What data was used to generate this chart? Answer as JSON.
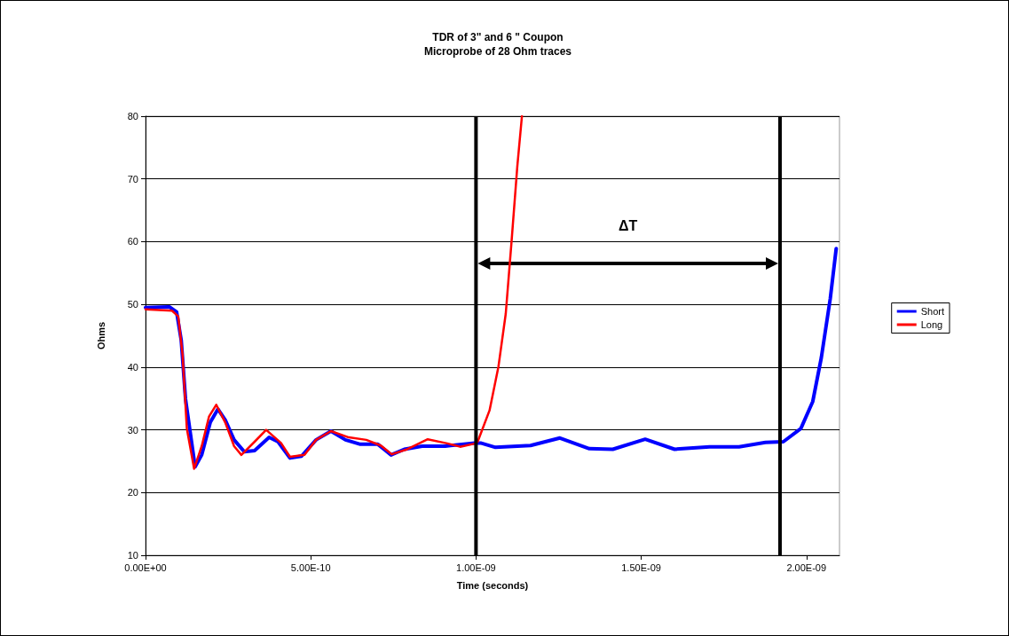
{
  "chart_data": {
    "type": "line",
    "title": "TDR of 3\" and 6 \" Coupon",
    "subtitle": "Microprobe of 28 Ohm traces",
    "xlabel": "Time (seconds)",
    "ylabel": "Ohms",
    "xlim": [
      0,
      2.1e-09
    ],
    "xticks": [
      {
        "value": 0,
        "label": "0.00E+00"
      },
      {
        "value": 5e-10,
        "label": "5.00E-10"
      },
      {
        "value": 1e-09,
        "label": "1.00E-09"
      },
      {
        "value": 1.5e-09,
        "label": "1.50E-09"
      },
      {
        "value": 2e-09,
        "label": "2.00E-09"
      }
    ],
    "ylim": [
      10,
      80
    ],
    "yticks": [
      10,
      20,
      30,
      40,
      50,
      60,
      70,
      80
    ],
    "grid": "y",
    "legend": "right",
    "marker": "none",
    "line_style": "solid",
    "ref_lines": [
      {
        "axis": "x",
        "value": 1e-09,
        "label": null,
        "color": "#000000"
      },
      {
        "axis": "x",
        "value": 1.92e-09,
        "label": null,
        "color": "#000000"
      }
    ],
    "annotations": [
      "ΔT"
    ],
    "series": [
      {
        "name": "Short",
        "color": "#0000ff",
        "x": [
          0,
          7.2e-11,
          9.4e-11,
          1.08e-10,
          1.21e-10,
          1.5e-10,
          1.7e-10,
          1.96e-10,
          2.19e-10,
          2.41e-10,
          2.68e-10,
          2.99e-10,
          3.3e-10,
          3.74e-10,
          4.01e-10,
          4.37e-10,
          4.72e-10,
          5.16e-10,
          5.61e-10,
          6.05e-10,
          6.5e-10,
          7.03e-10,
          7.43e-10,
          7.83e-10,
          8.37e-10,
          9.07e-10,
          9.96e-10,
          1.014e-09,
          1.059e-09,
          1.165e-09,
          1.254e-09,
          1.343e-09,
          1.414e-09,
          1.512e-09,
          1.601e-09,
          1.707e-09,
          1.796e-09,
          1.876e-09,
          1.93e-09,
          1.983e-09,
          2.019e-09,
          2.045e-09,
          2.072e-09,
          2.09e-09
        ],
        "values": [
          49.5,
          49.6,
          48.8,
          44.3,
          34.9,
          24.1,
          26,
          31.2,
          33.3,
          31.6,
          28.4,
          26.5,
          26.7,
          28.8,
          28.1,
          25.5,
          25.8,
          28.4,
          29.8,
          28.4,
          27.7,
          27.7,
          26,
          26.9,
          27.4,
          27.4,
          27.9,
          27.9,
          27.2,
          27.5,
          28.7,
          27,
          26.9,
          28.5,
          26.9,
          27.3,
          27.3,
          28,
          28.1,
          30.2,
          34.5,
          41.5,
          50.9,
          58.9
        ]
      },
      {
        "name": "Long",
        "color": "#ff0000",
        "x": [
          0,
          8e-11,
          9.9e-11,
          1.12e-10,
          1.25e-10,
          1.47e-10,
          1.7e-10,
          1.92e-10,
          2.14e-10,
          2.41e-10,
          2.68e-10,
          2.9e-10,
          3.3e-10,
          3.65e-10,
          4.1e-10,
          4.37e-10,
          4.81e-10,
          5.16e-10,
          5.61e-10,
          6.15e-10,
          6.68e-10,
          7.12e-10,
          7.45e-10,
          7.92e-10,
          8.54e-10,
          9.16e-10,
          9.52e-10,
          9.96e-10,
          1.005e-09,
          1.041e-09,
          1.068e-09,
          1.09e-09,
          1.108e-09,
          1.125e-09,
          1.139e-09
        ],
        "values": [
          49.2,
          49,
          48.1,
          42,
          30.2,
          23.8,
          27.4,
          32.1,
          34,
          31.2,
          27.4,
          26,
          28.1,
          30,
          27.9,
          25.7,
          26,
          28.4,
          29.8,
          28.8,
          28.4,
          27.5,
          26.1,
          26.9,
          28.5,
          27.8,
          27.3,
          27.8,
          28.1,
          33.1,
          40.1,
          48.5,
          60.3,
          72,
          80
        ]
      }
    ]
  }
}
